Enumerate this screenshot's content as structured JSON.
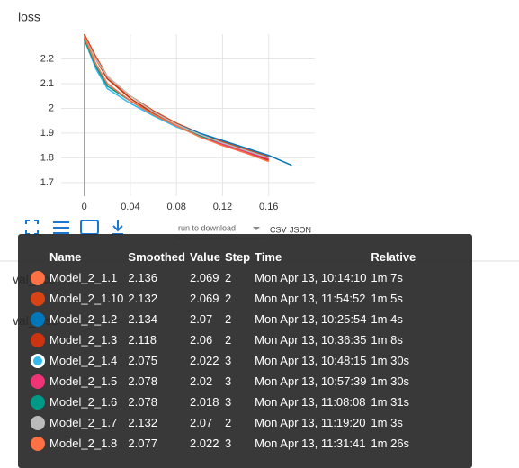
{
  "card": {
    "title": "loss",
    "run_select": "run to download",
    "csv": "CSV",
    "json": "JSON"
  },
  "hidden_cards": [
    "val_acc",
    "val_loss"
  ],
  "chart_data": {
    "type": "line",
    "x": [
      0,
      0.01,
      0.02,
      0.04,
      0.06,
      0.08,
      0.1,
      0.12,
      0.14,
      0.16,
      0.18
    ],
    "xlim": [
      -0.02,
      0.2
    ],
    "xticks": [
      0,
      0.04,
      0.08,
      0.12,
      0.16
    ],
    "ylim": [
      1.645,
      2.3
    ],
    "yticks": [
      1.7,
      1.8,
      1.9,
      2,
      2.1,
      2.2
    ],
    "grid": true,
    "series": [
      {
        "color": "#ff7043",
        "values": [
          2.29,
          2.2,
          2.13,
          2.04,
          1.98,
          1.93,
          1.89,
          1.855,
          1.825,
          1.795,
          null
        ]
      },
      {
        "color": "#d84315",
        "values": [
          2.3,
          2.21,
          2.13,
          2.05,
          1.99,
          1.94,
          1.9,
          1.865,
          1.835,
          1.805,
          null
        ]
      },
      {
        "color": "#0077bb",
        "values": [
          2.28,
          2.17,
          2.1,
          2.03,
          1.975,
          1.935,
          1.9,
          1.87,
          1.84,
          1.81,
          1.77
        ]
      },
      {
        "color": "#bf360c",
        "values": [
          2.29,
          2.2,
          2.12,
          2.04,
          1.98,
          1.93,
          1.89,
          1.85,
          1.82,
          1.79,
          null
        ]
      },
      {
        "color": "#33bbee",
        "values": [
          2.28,
          2.16,
          2.08,
          2.02,
          1.97,
          1.925,
          1.89,
          1.86,
          1.83,
          1.8,
          null
        ]
      },
      {
        "color": "#ee3377",
        "values": [
          2.29,
          2.18,
          2.1,
          2.03,
          1.975,
          1.93,
          1.89,
          1.855,
          1.825,
          1.795,
          null
        ]
      },
      {
        "color": "#009988",
        "values": [
          2.28,
          2.17,
          2.09,
          2.03,
          1.975,
          1.93,
          1.89,
          1.86,
          1.83,
          1.8,
          null
        ]
      },
      {
        "color": "#bbbbbb",
        "values": [
          2.29,
          2.2,
          2.13,
          2.05,
          1.985,
          1.935,
          1.895,
          1.86,
          1.83,
          1.8,
          null
        ]
      },
      {
        "color": "#ff7043",
        "values": [
          2.29,
          2.18,
          2.1,
          2.03,
          1.975,
          1.93,
          1.885,
          1.85,
          1.82,
          1.785,
          null
        ]
      }
    ]
  },
  "tooltip": {
    "headers": [
      "Name",
      "Smoothed",
      "Value",
      "Step",
      "Time",
      "Relative"
    ],
    "rows": [
      {
        "color": "#ff7043",
        "cells": [
          "Model_2_1.1",
          2.136,
          2.069,
          2,
          "Mon Apr 13, 10:14:10",
          "1m 7s"
        ]
      },
      {
        "color": "#d84315",
        "cells": [
          "Model_2_1.10",
          2.132,
          2.069,
          2,
          "Mon Apr 13, 11:54:52",
          "1m 5s"
        ]
      },
      {
        "color": "#0077bb",
        "cells": [
          "Model_2_1.2",
          2.134,
          2.07,
          2,
          "Mon Apr 13, 10:25:54",
          "1m 4s"
        ]
      },
      {
        "color": "#cc3311",
        "cells": [
          "Model_2_1.3",
          2.118,
          2.06,
          2,
          "Mon Apr 13, 10:36:35",
          "1m 8s"
        ]
      },
      {
        "color": "#33bbee",
        "cells": [
          "Model_2_1.4",
          2.075,
          2.022,
          3,
          "Mon Apr 13, 10:48:15",
          "1m 30s"
        ]
      },
      {
        "color": "#ee3377",
        "cells": [
          "Model_2_1.5",
          2.078,
          2.02,
          3,
          "Mon Apr 13, 10:57:39",
          "1m 30s"
        ]
      },
      {
        "color": "#009988",
        "cells": [
          "Model_2_1.6",
          2.078,
          2.018,
          3,
          "Mon Apr 13, 11:08:08",
          "1m 31s"
        ]
      },
      {
        "color": "#bbbbbb",
        "cells": [
          "Model_2_1.7",
          2.132,
          2.07,
          2,
          "Mon Apr 13, 11:19:20",
          "1m 3s"
        ]
      },
      {
        "color": "#ff7043",
        "cells": [
          "Model_2_1.8",
          2.077,
          2.022,
          3,
          "Mon Apr 13, 11:31:41",
          "1m 26s"
        ]
      }
    ]
  }
}
